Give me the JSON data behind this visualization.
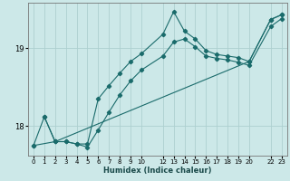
{
  "xlabel": "Humidex (Indice chaleur)",
  "bg_color": "#cce8e8",
  "line_color": "#1a6b6b",
  "grid_color": "#add0d0",
  "xlim": [
    -0.5,
    23.5
  ],
  "ylim": [
    17.62,
    19.58
  ],
  "yticks": [
    18,
    19
  ],
  "xticks": [
    0,
    1,
    2,
    3,
    4,
    5,
    6,
    7,
    8,
    9,
    10,
    12,
    13,
    14,
    15,
    16,
    17,
    18,
    19,
    20,
    22,
    23
  ],
  "series1_x": [
    0,
    1,
    2,
    3,
    4,
    5,
    6,
    7,
    8,
    9,
    10,
    12,
    13,
    14,
    15,
    16,
    17,
    18,
    19,
    20,
    22,
    23
  ],
  "series1_y": [
    17.75,
    18.12,
    17.8,
    17.8,
    17.77,
    17.77,
    18.35,
    18.52,
    18.68,
    18.83,
    18.93,
    19.18,
    19.47,
    19.22,
    19.12,
    18.97,
    18.92,
    18.9,
    18.88,
    18.83,
    19.37,
    19.43
  ],
  "series2_x": [
    1,
    2,
    3,
    4,
    5,
    6,
    7,
    8,
    9,
    10,
    12,
    13,
    14,
    15,
    16,
    17,
    18,
    19,
    20,
    22,
    23
  ],
  "series2_y": [
    18.12,
    17.8,
    17.8,
    17.77,
    17.73,
    17.95,
    18.18,
    18.4,
    18.58,
    18.72,
    18.9,
    19.08,
    19.12,
    19.02,
    18.9,
    18.87,
    18.85,
    18.82,
    18.78,
    19.28,
    19.38
  ],
  "series3_x": [
    0,
    2,
    20,
    22,
    23
  ],
  "series3_y": [
    17.75,
    17.8,
    18.83,
    19.37,
    19.43
  ]
}
